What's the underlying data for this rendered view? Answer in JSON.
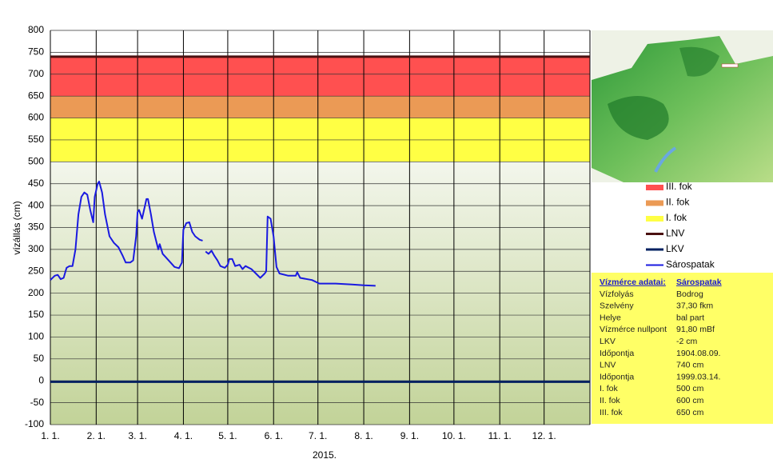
{
  "chart_data": {
    "type": "line",
    "x_label": "2015.",
    "y_label": "vízállás (cm)",
    "xlim": [
      0,
      365
    ],
    "ylim": [
      -100,
      800
    ],
    "yticks": [
      -100,
      -50,
      0,
      50,
      100,
      150,
      200,
      250,
      300,
      350,
      400,
      450,
      500,
      550,
      600,
      650,
      700,
      750,
      800
    ],
    "xticks": [
      {
        "value": 0,
        "label": "1. 1."
      },
      {
        "value": 31,
        "label": "2. 1."
      },
      {
        "value": 59,
        "label": "3. 1."
      },
      {
        "value": 90,
        "label": "4. 1."
      },
      {
        "value": 120,
        "label": "5. 1."
      },
      {
        "value": 151,
        "label": "6. 1."
      },
      {
        "value": 181,
        "label": "7. 1."
      },
      {
        "value": 212,
        "label": "8. 1."
      },
      {
        "value": 243,
        "label": "9. 1."
      },
      {
        "value": 273,
        "label": "10. 1."
      },
      {
        "value": 304,
        "label": "11. 1."
      },
      {
        "value": 334,
        "label": "12. 1."
      }
    ],
    "grid": true,
    "bands": [
      {
        "name": "III. fok",
        "from": 650,
        "to": 740,
        "color": "#ff5050"
      },
      {
        "name": "II. fok",
        "from": 600,
        "to": 650,
        "color": "#eb9a55"
      },
      {
        "name": "I. fok",
        "from": 500,
        "to": 600,
        "color": "#ffff44"
      }
    ],
    "lines": [
      {
        "name": "LNV",
        "value": 740,
        "color": "#4a1010"
      },
      {
        "name": "LKV",
        "value": -2,
        "color": "#002060"
      }
    ],
    "series": [
      {
        "name": "Sárospatak",
        "color": "#1a1ae0",
        "x": [
          0,
          3,
          5,
          7,
          9,
          11,
          13,
          15,
          17,
          19,
          21,
          23,
          25,
          27,
          29,
          30,
          32,
          33,
          35,
          37,
          40,
          43,
          46,
          49,
          51,
          54,
          56,
          58,
          59,
          60,
          62,
          64,
          65,
          66,
          68,
          70,
          73,
          74,
          76,
          80,
          84,
          87,
          89,
          90,
          92,
          94,
          96,
          98,
          101,
          103,
          104,
          105,
          107,
          109,
          111,
          113,
          115,
          118,
          120,
          121,
          123,
          125,
          128,
          130,
          132,
          136,
          139,
          142,
          145,
          146,
          147,
          149,
          151,
          153,
          155,
          161,
          166,
          167,
          169,
          177,
          182,
          193,
          204,
          212,
          220
        ],
        "values": [
          230,
          240,
          242,
          232,
          235,
          258,
          262,
          262,
          300,
          380,
          420,
          430,
          425,
          390,
          362,
          420,
          450,
          455,
          430,
          380,
          330,
          315,
          305,
          285,
          270,
          270,
          275,
          330,
          385,
          390,
          370,
          400,
          415,
          415,
          380,
          340,
          300,
          312,
          290,
          275,
          260,
          257,
          270,
          345,
          360,
          362,
          340,
          330,
          322,
          320,
          null,
          295,
          290,
          297,
          285,
          275,
          262,
          258,
          265,
          278,
          278,
          262,
          265,
          255,
          262,
          255,
          245,
          235,
          245,
          250,
          375,
          370,
          330,
          260,
          245,
          240,
          240,
          248,
          235,
          230,
          222,
          222,
          220,
          218,
          217
        ]
      }
    ]
  },
  "info_table": {
    "title": "Vízmérce adatai:",
    "station": "Sárospatak",
    "rows": [
      [
        "Vízfolyás",
        "Bodrog"
      ],
      [
        "Szelvény",
        "37,30 fkm"
      ],
      [
        "Helye",
        "bal part"
      ],
      [
        "Vízmérce nullpont",
        "91,80 mBf"
      ],
      [
        "LKV",
        "-2 cm"
      ],
      [
        "Időpontja",
        "1904.08.09."
      ],
      [
        "LNV",
        "740 cm"
      ],
      [
        "Időpontja",
        "1999.03.14."
      ],
      [
        "I. fok",
        "500 cm"
      ],
      [
        "II. fok",
        "600 cm"
      ],
      [
        "III. fok",
        "650 cm"
      ]
    ]
  }
}
